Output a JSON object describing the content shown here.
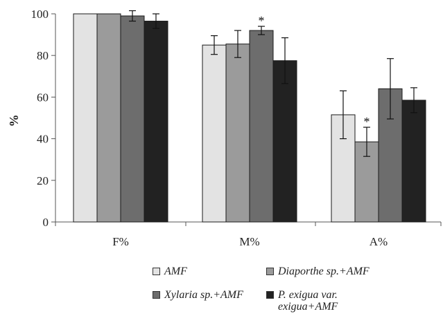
{
  "chart_data": {
    "type": "bar",
    "title": "",
    "xlabel": "",
    "ylabel": "%",
    "ylim": [
      0,
      100
    ],
    "yticks": [
      0,
      20,
      40,
      60,
      80,
      100
    ],
    "grid": false,
    "legend_position": "bottom",
    "categories": [
      "F%",
      "M%",
      "A%"
    ],
    "series": [
      {
        "name": "AMF",
        "color": "#e3e3e3",
        "values": [
          100,
          85,
          51.5
        ],
        "errors": [
          0,
          4.5,
          11.5
        ],
        "significant": [
          false,
          false,
          false
        ]
      },
      {
        "name": "Diaporthe sp.+AMF",
        "color": "#9b9b9b",
        "values": [
          100,
          85.5,
          38.5
        ],
        "errors": [
          0,
          6.5,
          7
        ],
        "significant": [
          false,
          false,
          true
        ]
      },
      {
        "name": "Xylaria sp.+AMF",
        "color": "#6d6d6d",
        "values": [
          99,
          92,
          64
        ],
        "errors": [
          2.5,
          2,
          14.5
        ],
        "significant": [
          false,
          true,
          false
        ]
      },
      {
        "name": "P. exigua var. exigua+AMF",
        "color": "#222222",
        "values": [
          96.5,
          77.5,
          58.5
        ],
        "errors": [
          3.5,
          11,
          6
        ],
        "significant": [
          false,
          false,
          false
        ]
      }
    ],
    "significance_marker": "*"
  },
  "legend": {
    "items": [
      {
        "label": "AMF",
        "lines": [
          "AMF"
        ]
      },
      {
        "label": "Diaporthe sp.+AMF",
        "lines": [
          "Diaporthe sp.+AMF"
        ]
      },
      {
        "label": "Xylaria sp.+AMF",
        "lines": [
          "Xylaria sp.+AMF"
        ]
      },
      {
        "label": "P. exigua var. exigua+AMF",
        "lines": [
          "P. exigua var.",
          "exigua+AMF"
        ]
      }
    ]
  }
}
